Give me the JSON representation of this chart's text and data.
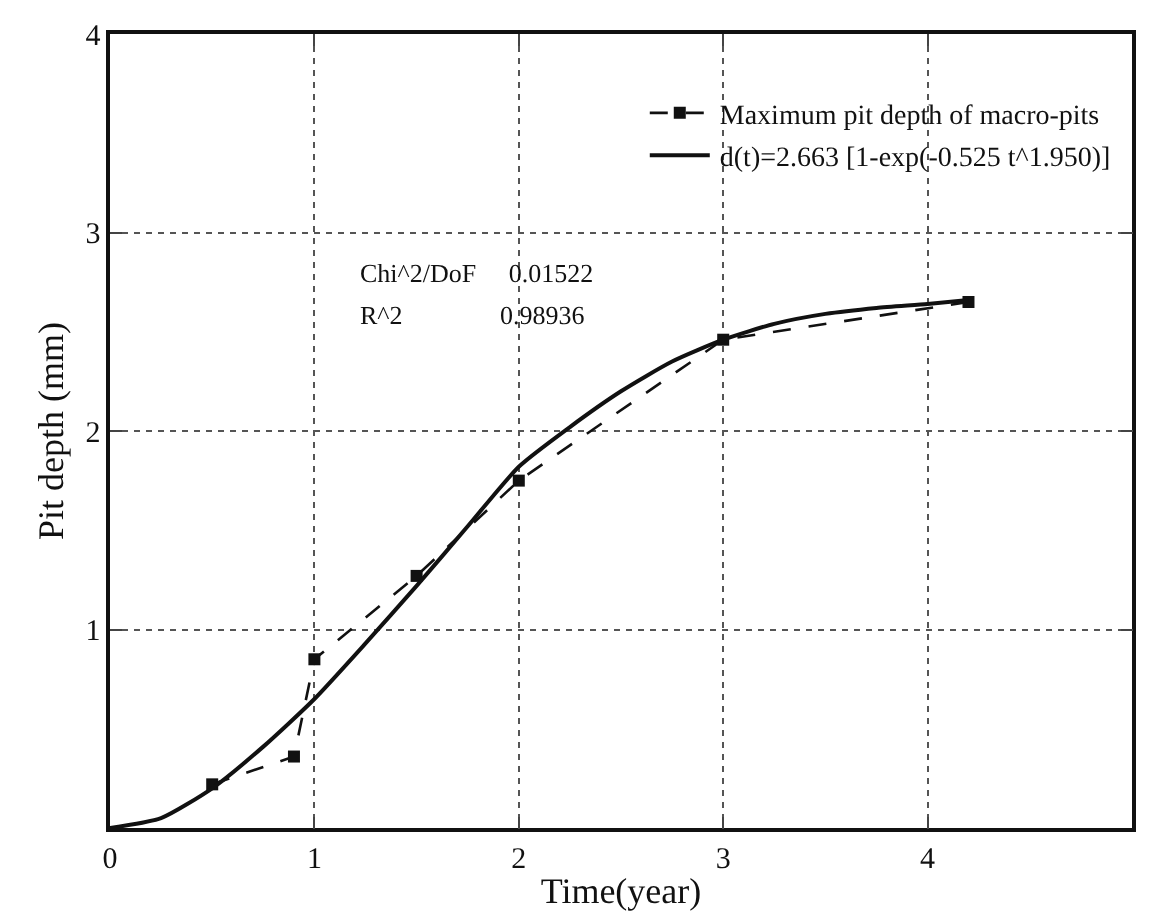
{
  "chart_data": {
    "type": "line",
    "xlabel": "Time(year)",
    "ylabel": "Pit depth (mm)",
    "xlim": [
      0,
      5
    ],
    "xticks": [
      0,
      1,
      2,
      3,
      4
    ],
    "ylim": [
      0,
      4
    ],
    "yticks": [
      1,
      2,
      3,
      4
    ],
    "grid": true,
    "legend": "top right",
    "series": [
      {
        "name": "Maximum pit depth of macro-pits",
        "color": "#111111",
        "marker": "square",
        "line_style": "dashed",
        "x": [
          0.5,
          0.9,
          1.0,
          1.5,
          2.0,
          3.0,
          4.2
        ],
        "values": [
          0.22,
          0.36,
          0.85,
          1.27,
          1.75,
          2.46,
          2.65
        ]
      },
      {
        "name": "d(t)=2.663 [1-exp(-0.525 t^1.950)]",
        "color": "#111111",
        "marker": "none",
        "line_style": "solid",
        "x": [
          0,
          0.25,
          0.5,
          0.75,
          1.0,
          1.25,
          1.5,
          1.75,
          2.0,
          2.25,
          2.5,
          2.75,
          3.0,
          3.25,
          3.5,
          3.75,
          4.0,
          4.2
        ],
        "values": [
          0,
          0.05,
          0.2,
          0.41,
          0.65,
          0.93,
          1.22,
          1.52,
          1.82,
          2.02,
          2.2,
          2.35,
          2.46,
          2.54,
          2.59,
          2.62,
          2.64,
          2.66
        ]
      }
    ],
    "annotations": [
      "Chi^2/DoF     0.01522",
      "R^2               0.98936"
    ]
  }
}
